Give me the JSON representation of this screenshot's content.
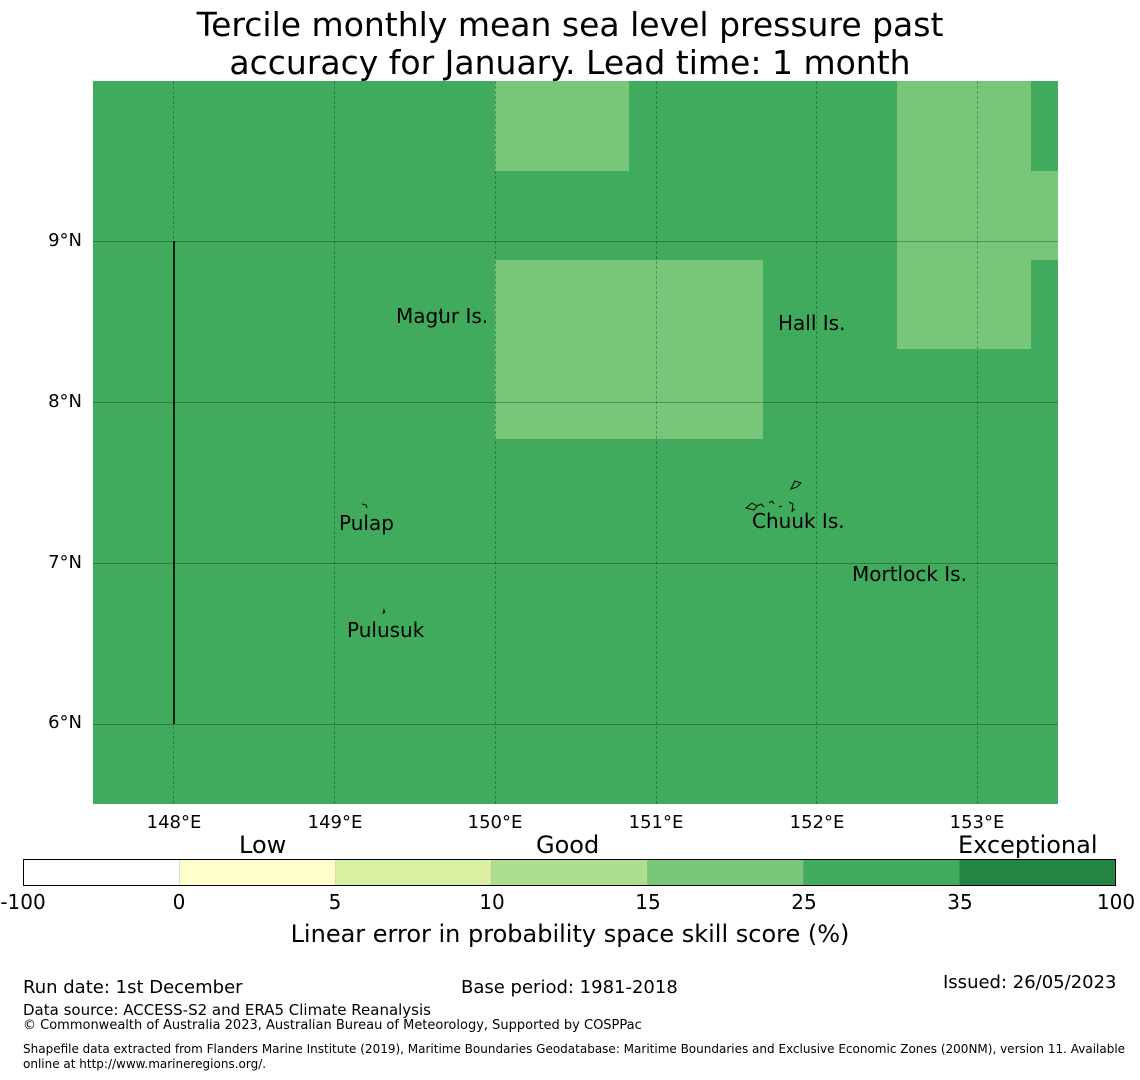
{
  "title_line1": "Tercile monthly mean sea level pressure past",
  "title_line2": "accuracy for January. Lead time: 1 month",
  "map": {
    "background_color": "#41ab5d",
    "highlight_color": "#78c679",
    "lat_labels": [
      "9°N",
      "8°N",
      "7°N",
      "6°N"
    ],
    "lon_labels": [
      "148°E",
      "149°E",
      "150°E",
      "151°E",
      "152°E",
      "153°E"
    ],
    "islands": [
      "Magur Is.",
      "Hall Is.",
      "Pulap",
      "Chuuk Is.",
      "Mortlock Is.",
      "Pulusuk"
    ]
  },
  "colorbar": {
    "categories": [
      "Low",
      "Good",
      "Exceptional"
    ],
    "ticks": [
      "-100",
      "0",
      "5",
      "10",
      "15",
      "25",
      "35",
      "100"
    ],
    "colors": [
      "#ffffff",
      "#ffffcc",
      "#d9f0a3",
      "#addd8e",
      "#78c679",
      "#41ab5d",
      "#238443"
    ],
    "label": "Linear error in probability space skill score (%)"
  },
  "footer": {
    "run_date": "Run date: 1st December",
    "base_period": "Base period: 1981-2018",
    "issued": "Issued: 26/05/2023",
    "data_source": "Data source: ACCESS-S2 and ERA5 Climate Reanalysis",
    "copyright": "© Commonwealth of Australia 2023, Australian Bureau of Meteorology, Supported by COSPPac",
    "shapefile_line1": "Shapefile data extracted from Flanders Marine Institute (2019), Maritime Boundaries Geodatabase: Maritime Boundaries and Exclusive Economic Zones (200NM), version 11. Available",
    "shapefile_line2": "online at http://www.marineregions.org/."
  }
}
